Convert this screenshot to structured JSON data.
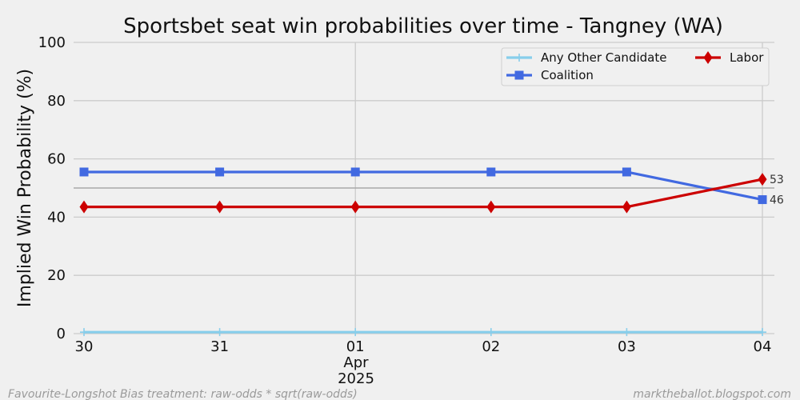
{
  "chart_data": {
    "type": "line",
    "title": "Sportsbet seat win probabilities over time - Tangney (WA)",
    "ylabel": "Implied Win Probability (%)",
    "xlabel": "",
    "ylim": [
      0,
      100
    ],
    "yticks": [
      "0",
      "20",
      "40",
      "60",
      "80",
      "100"
    ],
    "x_ticks": [
      "30",
      "31",
      "01",
      "02",
      "03",
      "04"
    ],
    "x_month_label": "Apr",
    "x_year_label": "2025",
    "reference_line": 50,
    "grid": true,
    "legend_position": "top-right",
    "series": [
      {
        "name": "Any Other Candidate",
        "color": "#87ceeb",
        "marker": "plus",
        "values": [
          0.5,
          0.5,
          0.5,
          0.5,
          0.5,
          0.5
        ]
      },
      {
        "name": "Coalition",
        "color": "#4169e1",
        "marker": "square",
        "values": [
          55.5,
          55.5,
          55.5,
          55.5,
          55.5,
          46
        ]
      },
      {
        "name": "Labor",
        "color": "#cc0000",
        "marker": "diamond",
        "values": [
          43.5,
          43.5,
          43.5,
          43.5,
          43.5,
          53
        ]
      }
    ],
    "end_labels": [
      {
        "series": "Labor",
        "text": "53"
      },
      {
        "series": "Coalition",
        "text": "46"
      }
    ]
  },
  "footer": {
    "left": "Favourite-Longshot Bias treatment: raw-odds * sqrt(raw-odds)",
    "right": "marktheballot.blogspot.com"
  }
}
